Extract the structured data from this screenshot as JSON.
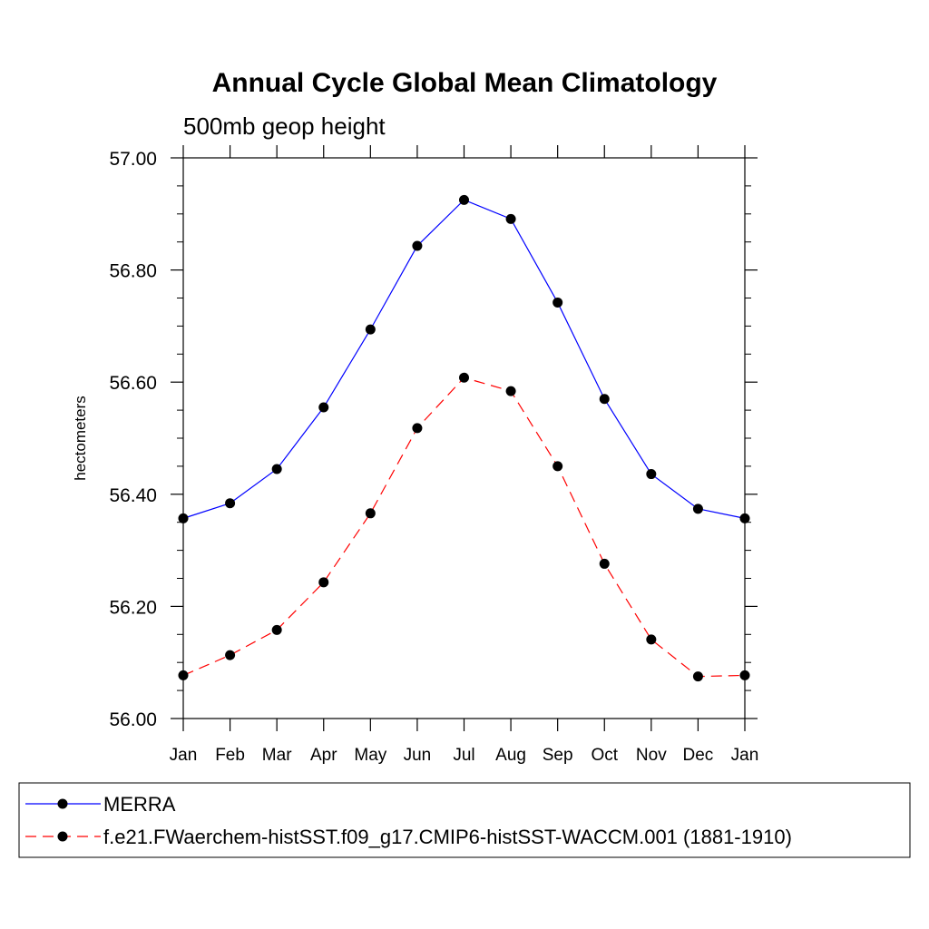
{
  "chart_data": {
    "type": "line",
    "title": "Annual Cycle Global Mean Climatology",
    "subtitle": "500mb geop height",
    "xlabel": "",
    "ylabel": "hectometers",
    "categories": [
      "Jan",
      "Feb",
      "Mar",
      "Apr",
      "May",
      "Jun",
      "Jul",
      "Aug",
      "Sep",
      "Oct",
      "Nov",
      "Dec",
      "Jan"
    ],
    "yticks": [
      "56.00",
      "56.20",
      "56.40",
      "56.60",
      "56.80",
      "57.00"
    ],
    "ylim": [
      56.0,
      57.0
    ],
    "grid": false,
    "legend_position": "bottom",
    "series": [
      {
        "name": "MERRA",
        "color": "#0000ff",
        "line_style": "solid",
        "marker": "filled-circle",
        "values": [
          56.357,
          56.384,
          56.445,
          56.555,
          56.694,
          56.843,
          56.925,
          56.891,
          56.742,
          56.57,
          56.436,
          56.374,
          56.357
        ]
      },
      {
        "name": "f.e21.FWaerchem-histSST.f09_g17.CMIP6-histSST-WACCM.001 (1881-1910)",
        "color": "#ff0000",
        "line_style": "dashed",
        "marker": "filled-circle",
        "values": [
          56.077,
          56.113,
          56.158,
          56.243,
          56.366,
          56.518,
          56.608,
          56.584,
          56.45,
          56.276,
          56.141,
          56.075,
          56.077
        ]
      }
    ]
  }
}
